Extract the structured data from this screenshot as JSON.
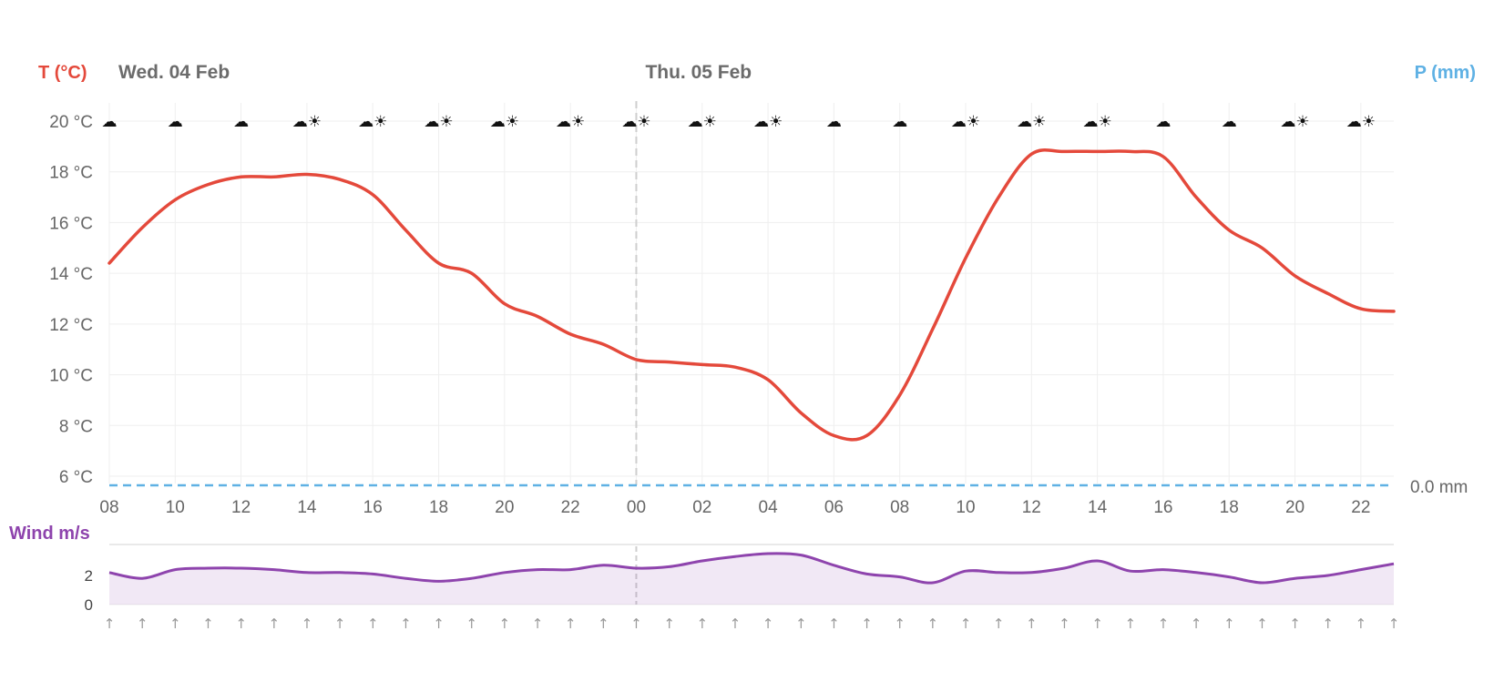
{
  "chart_data": {
    "type": "line",
    "days": [
      {
        "label": "Wed. 04 Feb",
        "start_index": 0
      },
      {
        "label": "Thu. 05 Feb",
        "start_index": 16
      }
    ],
    "temperature": {
      "axis_label": "T (°C)",
      "color": "#e4493b",
      "ylim": [
        6,
        20
      ],
      "yticks": [
        "20 °C",
        "18 °C",
        "16 °C",
        "14 °C",
        "12 °C",
        "10 °C",
        "8 °C",
        "6 °C"
      ],
      "x": [
        "08",
        "09",
        "10",
        "11",
        "12",
        "13",
        "14",
        "15",
        "16",
        "17",
        "18",
        "19",
        "20",
        "21",
        "22",
        "23",
        "00",
        "01",
        "02",
        "03",
        "04",
        "05",
        "06",
        "07",
        "08",
        "09",
        "10",
        "11",
        "12",
        "13",
        "14",
        "15",
        "16",
        "17",
        "18",
        "19",
        "20",
        "21",
        "22",
        "23"
      ],
      "values": [
        14.4,
        15.8,
        16.9,
        17.5,
        17.8,
        17.8,
        17.9,
        17.7,
        17.1,
        15.7,
        14.4,
        14.0,
        12.8,
        12.3,
        11.6,
        11.2,
        10.6,
        10.5,
        10.4,
        10.3,
        9.8,
        8.5,
        7.6,
        7.6,
        9.2,
        11.8,
        14.6,
        17.0,
        18.7,
        18.8,
        18.8,
        18.8,
        18.6,
        17.0,
        15.7,
        15.0,
        13.9,
        13.2,
        12.6,
        12.5
      ]
    },
    "x_tick_labels": [
      "08",
      "10",
      "12",
      "14",
      "16",
      "18",
      "20",
      "22",
      "00",
      "02",
      "04",
      "06",
      "08",
      "10",
      "12",
      "14",
      "16",
      "18",
      "20",
      "22"
    ],
    "precipitation": {
      "axis_label": "P (mm)",
      "color": "#5fb1e4",
      "value_label": "0.0 mm",
      "values": [
        0
      ]
    },
    "wind": {
      "axis_label": "Wind m/s",
      "color": "#8e44ad",
      "ylim": [
        0,
        4
      ],
      "yticks": [
        "2",
        "0"
      ],
      "values": [
        2.2,
        1.8,
        2.4,
        2.5,
        2.5,
        2.4,
        2.2,
        2.2,
        2.1,
        1.8,
        1.6,
        1.8,
        2.2,
        2.4,
        2.4,
        2.7,
        2.5,
        2.6,
        3.0,
        3.3,
        3.5,
        3.4,
        2.7,
        2.1,
        1.9,
        1.5,
        2.3,
        2.2,
        2.2,
        2.5,
        3.0,
        2.3,
        2.4,
        2.2,
        1.9,
        1.5,
        1.8,
        2.0,
        2.4,
        2.8
      ]
    },
    "weather_icons": [
      "☁",
      "☁",
      "☁",
      "☁☀",
      "☁☀",
      "☁☀",
      "☁☀",
      "☁☀",
      "☁☀",
      "☁☀",
      "☁☀",
      "☁",
      "☁",
      "☁☀",
      "☁☀",
      "☁☀",
      "☁",
      "☁",
      "☁☀",
      "☁☀"
    ],
    "wind_arrows": [
      "↑",
      "↑",
      "↑",
      "↑",
      "↑",
      "↑",
      "↑",
      "↑",
      "↑",
      "↑",
      "↑",
      "↑",
      "↑",
      "↑",
      "↑",
      "↑",
      "↑",
      "↑",
      "↑",
      "↑",
      "↑",
      "↑",
      "↑",
      "↑",
      "↑",
      "↑",
      "↑",
      "↑",
      "↑",
      "↑",
      "↑",
      "↑",
      "↑",
      "↑",
      "↑",
      "↑",
      "↑",
      "↑",
      "↑",
      "↑"
    ],
    "grid": true,
    "day_separator": "dashed"
  }
}
